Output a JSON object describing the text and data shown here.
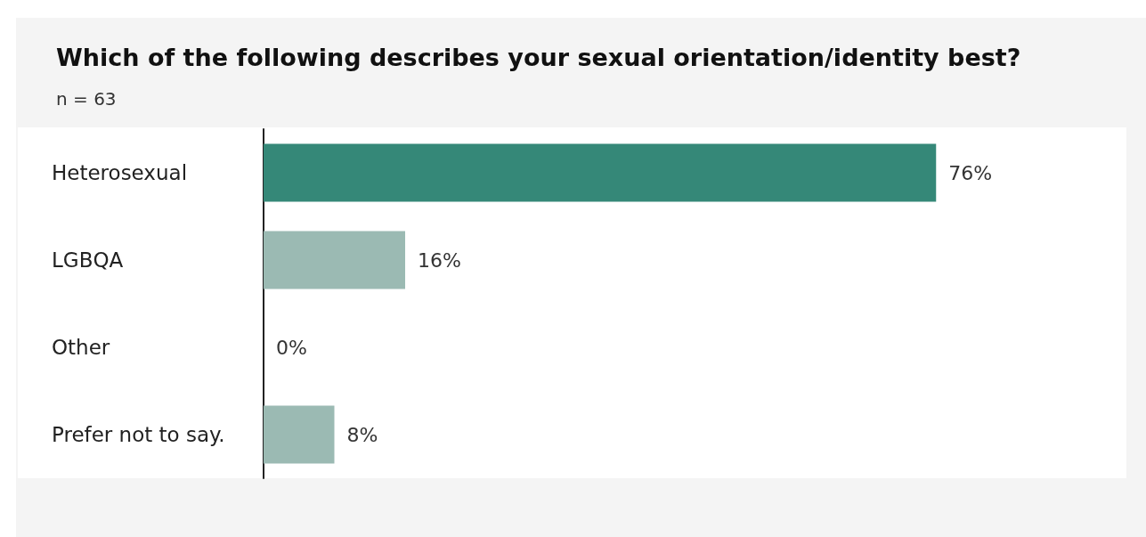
{
  "chart_data": {
    "type": "bar",
    "orientation": "horizontal",
    "title": "Which of the following describes your sexual orientation/identity best?",
    "subtitle": "n = 63",
    "categories": [
      "Heterosexual",
      "LGBQA",
      "Other",
      "Prefer not to say."
    ],
    "values": [
      76,
      16,
      0,
      8
    ],
    "colors": [
      "#358878",
      "#9bbab3",
      "#9bbab3",
      "#9bbab3"
    ],
    "value_labels": [
      "76%",
      "16%",
      "0%",
      "8%"
    ]
  }
}
